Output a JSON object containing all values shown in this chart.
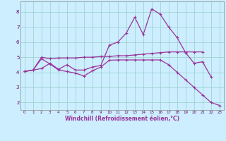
{
  "xlabel": "Windchill (Refroidissement éolien,°C)",
  "bg_color": "#cceeff",
  "line_color": "#993399",
  "xlim": [
    -0.5,
    23.5
  ],
  "ylim": [
    1.5,
    8.7
  ],
  "yticks": [
    2,
    3,
    4,
    5,
    6,
    7,
    8
  ],
  "xticks": [
    0,
    1,
    2,
    3,
    4,
    5,
    6,
    7,
    8,
    9,
    10,
    11,
    12,
    13,
    14,
    15,
    16,
    17,
    18,
    19,
    20,
    21,
    22,
    23
  ],
  "line1_x": [
    0,
    1,
    2,
    3,
    4,
    5,
    6,
    7,
    8,
    9,
    10,
    11,
    12,
    13,
    14,
    15,
    16,
    17,
    18,
    19,
    20,
    21,
    22
  ],
  "line1_y": [
    4.05,
    4.15,
    4.25,
    4.6,
    4.2,
    4.5,
    4.15,
    4.15,
    4.35,
    4.45,
    5.8,
    6.0,
    6.6,
    7.65,
    6.5,
    8.2,
    7.85,
    7.0,
    6.3,
    5.3,
    4.6,
    4.7,
    3.7
  ],
  "line2_x": [
    0,
    1,
    2,
    3,
    4,
    5,
    6,
    7,
    8,
    9,
    10,
    11,
    12,
    13,
    14,
    15,
    16,
    17,
    18,
    19,
    20,
    21
  ],
  "line2_y": [
    4.05,
    4.15,
    5.0,
    4.9,
    4.95,
    4.95,
    4.95,
    5.0,
    5.0,
    5.05,
    5.05,
    5.1,
    5.1,
    5.15,
    5.2,
    5.25,
    5.3,
    5.35,
    5.35,
    5.35,
    5.35,
    5.35
  ],
  "line3_x": [
    0,
    1,
    2,
    3,
    4,
    5,
    6,
    7,
    8,
    9,
    10,
    11,
    12,
    13,
    14,
    15,
    16,
    17,
    18,
    19,
    20,
    21,
    22,
    23
  ],
  "line3_y": [
    4.05,
    4.15,
    4.9,
    4.55,
    4.15,
    4.05,
    3.95,
    3.75,
    4.1,
    4.35,
    4.8,
    4.82,
    4.82,
    4.82,
    4.82,
    4.82,
    4.82,
    4.5,
    4.0,
    3.5,
    3.0,
    2.5,
    2.0,
    1.8
  ]
}
